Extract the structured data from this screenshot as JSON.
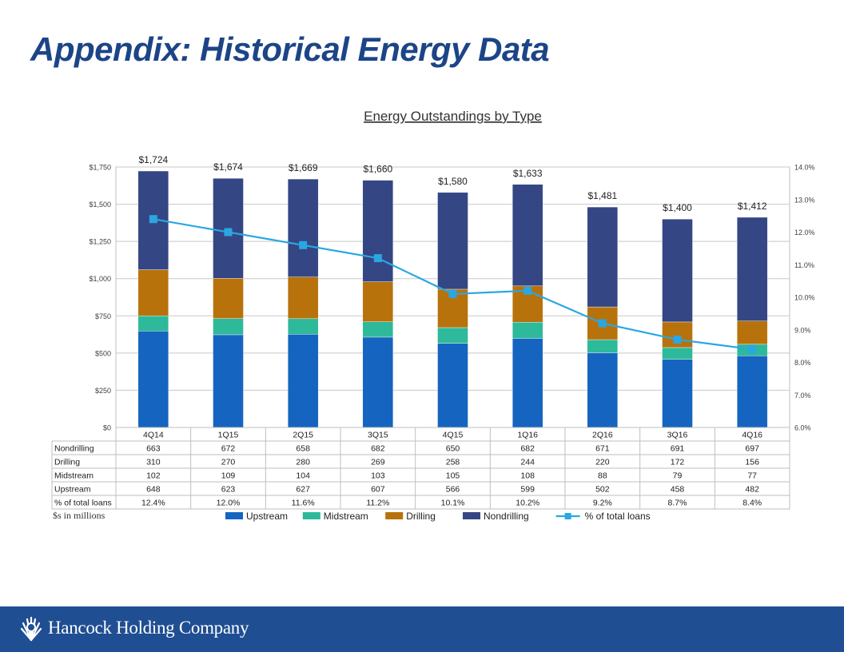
{
  "page": {
    "title": "Appendix: Historical Energy Data",
    "units_note": "$s in millions",
    "footer_company": "Hancock Holding Company",
    "logo_icon": "sunburst-logo-icon"
  },
  "chart_data": {
    "type": "bar",
    "stacked": true,
    "title": "Energy Outstandings by Type",
    "categories": [
      "4Q14",
      "1Q15",
      "2Q15",
      "3Q15",
      "4Q15",
      "1Q16",
      "2Q16",
      "3Q16",
      "4Q16"
    ],
    "totals": [
      "$1,724",
      "$1,674",
      "$1,669",
      "$1,660",
      "$1,580",
      "$1,633",
      "$1,481",
      "$1,400",
      "$1,412"
    ],
    "series": [
      {
        "name": "Upstream",
        "color": "#1565c0",
        "values": [
          648,
          623,
          627,
          607,
          566,
          599,
          502,
          458,
          482
        ]
      },
      {
        "name": "Midstream",
        "color": "#2db99a",
        "values": [
          102,
          109,
          104,
          103,
          105,
          108,
          88,
          79,
          77
        ]
      },
      {
        "name": "Drilling",
        "color": "#b8720c",
        "values": [
          310,
          270,
          280,
          269,
          258,
          244,
          220,
          172,
          156
        ]
      },
      {
        "name": "Nondrilling",
        "color": "#344683",
        "values": [
          663,
          672,
          658,
          682,
          650,
          682,
          671,
          691,
          697
        ]
      }
    ],
    "line_series": {
      "name": "% of total loans",
      "color": "#29a7e1",
      "values": [
        12.4,
        12.0,
        11.6,
        11.2,
        10.1,
        10.2,
        9.2,
        8.7,
        8.4
      ]
    },
    "y_left": {
      "min": 0,
      "max": 1750,
      "ticks": [
        0,
        250,
        500,
        750,
        1000,
        1250,
        1500,
        1750
      ],
      "tick_labels": [
        "$0",
        "$250",
        "$500",
        "$750",
        "$1,000",
        "$1,250",
        "$1,500",
        "$1,750"
      ]
    },
    "y_right": {
      "min": 6.0,
      "max": 14.0,
      "ticks": [
        6,
        7,
        8,
        9,
        10,
        11,
        12,
        13,
        14
      ],
      "tick_labels": [
        "6.0%",
        "7.0%",
        "8.0%",
        "9.0%",
        "10.0%",
        "11.0%",
        "12.0%",
        "13.0%",
        "14.0%"
      ]
    },
    "grid": true,
    "legend_position": "bottom",
    "table": {
      "rows": [
        {
          "label": "Nondrilling",
          "values": [
            "663",
            "672",
            "658",
            "682",
            "650",
            "682",
            "671",
            "691",
            "697"
          ]
        },
        {
          "label": "Drilling",
          "values": [
            "310",
            "270",
            "280",
            "269",
            "258",
            "244",
            "220",
            "172",
            "156"
          ]
        },
        {
          "label": "Midstream",
          "values": [
            "102",
            "109",
            "104",
            "103",
            "105",
            "108",
            "88",
            "79",
            "77"
          ]
        },
        {
          "label": "Upstream",
          "values": [
            "648",
            "623",
            "627",
            "607",
            "566",
            "599",
            "502",
            "458",
            "482"
          ]
        },
        {
          "label": "% of total loans",
          "values": [
            "12.4%",
            "12.0%",
            "11.6%",
            "11.2%",
            "10.1%",
            "10.2%",
            "9.2%",
            "8.7%",
            "8.4%"
          ]
        }
      ]
    }
  }
}
